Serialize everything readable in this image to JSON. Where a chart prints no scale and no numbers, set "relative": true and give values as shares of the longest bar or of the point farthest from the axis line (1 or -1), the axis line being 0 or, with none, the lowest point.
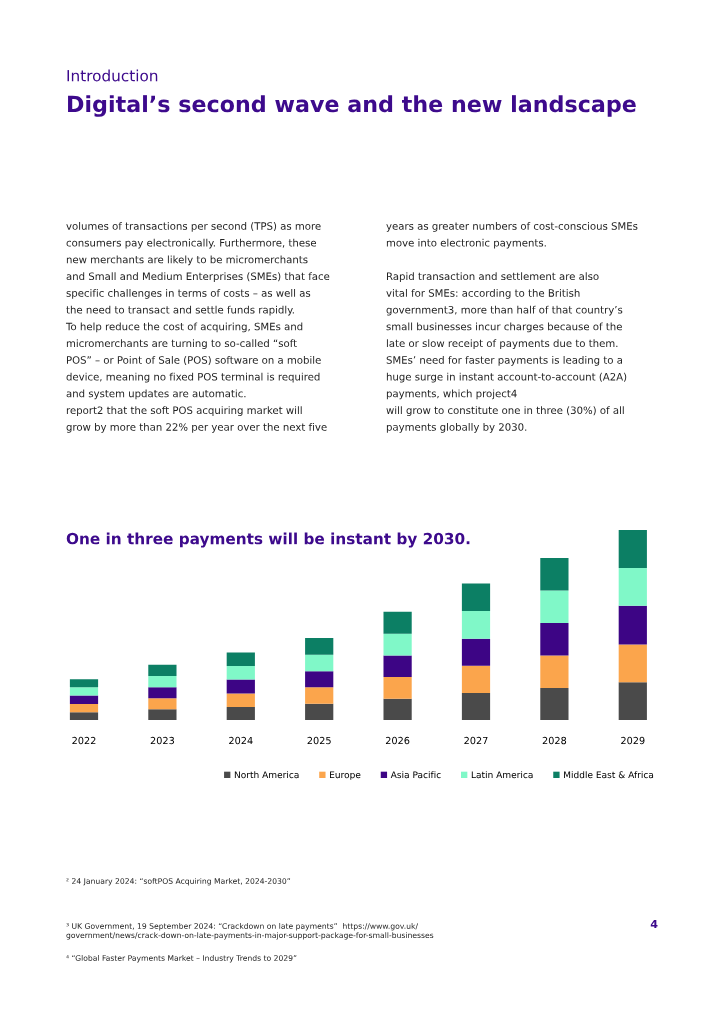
{
  "chart_data": {
    "type": "bar",
    "title": "One in three payments will be instant by 2030.",
    "categories": [
      "2022",
      "2023",
      "2024",
      "2025",
      "2026",
      "2027",
      "2028",
      "2029"
    ],
    "stacked": true,
    "relative": true,
    "legend": "bottom",
    "grid": false,
    "series": [
      {
        "name": "North America",
        "color": "#4a4a4a",
        "values": [
          0.041,
          0.057,
          0.069,
          0.085,
          0.112,
          0.142,
          0.168,
          0.199
        ]
      },
      {
        "name": "Europe",
        "color": "#fba54c",
        "values": [
          0.043,
          0.057,
          0.071,
          0.087,
          0.114,
          0.144,
          0.172,
          0.199
        ]
      },
      {
        "name": "Asia Pacific",
        "color": "#3d0585",
        "values": [
          0.045,
          0.059,
          0.073,
          0.085,
          0.114,
          0.142,
          0.17,
          0.203
        ]
      },
      {
        "name": "Latin America",
        "color": "#80f8c8",
        "values": [
          0.043,
          0.059,
          0.071,
          0.087,
          0.114,
          0.146,
          0.172,
          0.199
        ]
      },
      {
        "name": "Middle East & Africa",
        "color": "#0c7f64",
        "values": [
          0.043,
          0.059,
          0.071,
          0.087,
          0.116,
          0.144,
          0.17,
          0.2
        ]
      }
    ],
    "annotations": [
      "Introduction",
      "Digital’s second wave and the new landscape",
      "volumes of transactions per second (TPS) as more\nconsumers pay electronically. Furthermore, these\nnew merchants are likely to be micromerchants\nand Small and Medium Enterprises (SMEs) that face\nspecific challenges in terms of costs – as well as\nthe need to transact and settle funds rapidly.\nTo help reduce the cost of acquiring, SMEs and\nmicromerchants are turning to so-called “soft\nPOS” – or Point of Sale (POS) software on a mobile\ndevice, meaning no fixed POS terminal is required\nand system updates are automatic.\nreport2 that the soft POS acquiring market will\ngrow by more than 22% per year over the next five",
      "years as greater numbers of cost-conscious SMEs\nmove into electronic payments.\n\nRapid transaction and settlement are also\nvital for SMEs: according to the British\ngovernment3, more than half of that country’s\nsmall businesses incur charges because of the\nlate or slow receipt of payments due to them.\nSMEs’ need for faster payments is leading to a\nhuge surge in instant account-to-account (A2A)\npayments, which project4\nwill grow to constitute one in three (30%) of all\npayments globally by 2030.",
      "² 24 January 2024: “softPOS Acquiring Market, 2024-2030”",
      "³ UK Government, 19 September 2024: “Crackdown on late payments”  https://www.gov.uk/\ngovernment/news/crack-down-on-late-payments-in-major-support-package-for-small-businesses",
      "⁴ “Global Faster Payments Market – Industry Trends to 2029”",
      "4"
    ]
  }
}
